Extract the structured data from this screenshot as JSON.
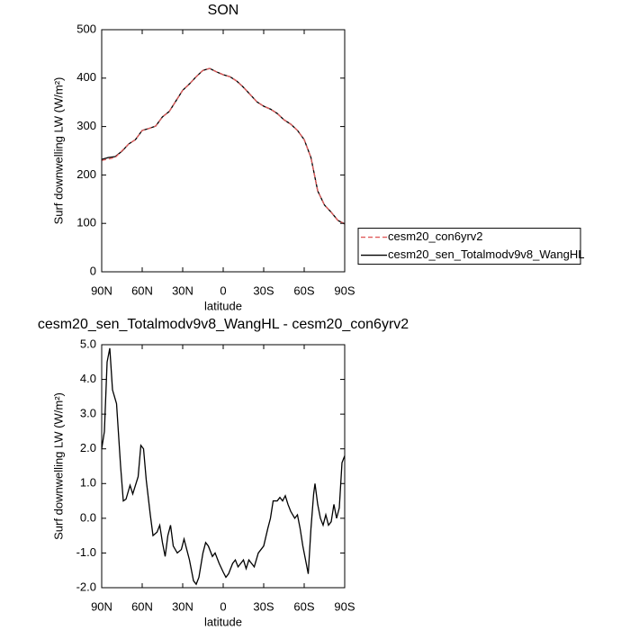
{
  "chart_data": [
    {
      "type": "line",
      "title": "SON",
      "xlabel": "latitude",
      "ylabel": "Surf downwelling LW (W/m²)",
      "x": [
        90,
        85,
        80,
        75,
        70,
        65,
        60,
        55,
        50,
        45,
        40,
        35,
        30,
        25,
        20,
        15,
        10,
        5,
        0,
        -5,
        -10,
        -15,
        -20,
        -25,
        -30,
        -35,
        -40,
        -45,
        -50,
        -55,
        -60,
        -65,
        -70,
        -75,
        -80,
        -85,
        -90
      ],
      "series": [
        {
          "name": "cesm20_con6yrv2",
          "color": "#e05a5a",
          "dash": true,
          "values": [
            230,
            233,
            236,
            250,
            264,
            273,
            292,
            296,
            301,
            320,
            331,
            353,
            375,
            388,
            403,
            416,
            420,
            413,
            407,
            403,
            394,
            381,
            366,
            351,
            342,
            336,
            327,
            314,
            305,
            292,
            273,
            236,
            167,
            138,
            123,
            106,
            99
          ]
        },
        {
          "name": "cesm20_sen_Totalmodv9v8_WangHL",
          "color": "#000000",
          "dash": false,
          "values": [
            232,
            236,
            238,
            249,
            264,
            273,
            292,
            296,
            301,
            320,
            331,
            353,
            375,
            388,
            403,
            416,
            420,
            413,
            407,
            403,
            394,
            381,
            366,
            351,
            342,
            336,
            327,
            314,
            305,
            292,
            273,
            236,
            167,
            138,
            123,
            106,
            99
          ]
        }
      ],
      "xlim": [
        90,
        -90
      ],
      "xticks": [
        {
          "value": 90,
          "label": "90N"
        },
        {
          "value": 60,
          "label": "60N"
        },
        {
          "value": 30,
          "label": "30N"
        },
        0,
        {
          "value": -30,
          "label": "30S"
        },
        {
          "value": -60,
          "label": "60S"
        },
        {
          "value": -90,
          "label": "90S"
        }
      ],
      "ylim": [
        0,
        500
      ],
      "yticks": [
        0,
        100,
        200,
        300,
        400,
        500
      ],
      "legend": "right"
    },
    {
      "type": "line",
      "title": "cesm20_sen_Totalmodv9v8_WangHL - cesm20_con6yrv2",
      "xlabel": "latitude",
      "ylabel": "Surf downwelling LW (W/m²)",
      "x": [
        90,
        88,
        86,
        84,
        82,
        79,
        76,
        74,
        72,
        69,
        67,
        63,
        61,
        59,
        57,
        54,
        52,
        49,
        47,
        45,
        43,
        41,
        39,
        37,
        34,
        31,
        29,
        27,
        25,
        22,
        20,
        18,
        15,
        13,
        11,
        8,
        6,
        3,
        0,
        -2,
        -4,
        -7,
        -9,
        -11,
        -13,
        -15,
        -17,
        -19,
        -21,
        -23,
        -26,
        -28,
        -30,
        -33,
        -35,
        -37,
        -40,
        -42,
        -44,
        -46,
        -48,
        -50,
        -53,
        -55,
        -57,
        -59,
        -61,
        -63,
        -65,
        -67,
        -68,
        -70,
        -72,
        -74,
        -76,
        -78,
        -80,
        -82,
        -84,
        -86,
        -88,
        -90
      ],
      "series": [
        {
          "color": "#000000",
          "dash": false,
          "values": [
            2.0,
            2.5,
            4.5,
            4.9,
            3.7,
            3.3,
            1.5,
            0.5,
            0.55,
            0.95,
            0.7,
            1.2,
            2.1,
            2.0,
            1.1,
            0.1,
            -0.5,
            -0.4,
            -0.2,
            -0.7,
            -1.1,
            -0.5,
            -0.2,
            -0.8,
            -1.0,
            -0.9,
            -0.6,
            -0.9,
            -1.2,
            -1.8,
            -1.9,
            -1.7,
            -1.0,
            -0.7,
            -0.8,
            -1.1,
            -1.0,
            -1.3,
            -1.55,
            -1.7,
            -1.6,
            -1.3,
            -1.2,
            -1.4,
            -1.3,
            -1.2,
            -1.45,
            -1.2,
            -1.3,
            -1.4,
            -1.0,
            -0.9,
            -0.8,
            -0.3,
            0.0,
            0.5,
            0.5,
            0.6,
            0.5,
            0.65,
            0.4,
            0.2,
            0.0,
            0.1,
            -0.3,
            -0.8,
            -1.2,
            -1.6,
            -0.3,
            0.7,
            1.0,
            0.4,
            0.0,
            -0.2,
            0.1,
            -0.2,
            -0.1,
            0.4,
            0.0,
            0.3,
            1.6,
            1.8
          ]
        }
      ],
      "xlim": [
        90,
        -90
      ],
      "xticks": [
        {
          "value": 90,
          "label": "90N"
        },
        {
          "value": 60,
          "label": "60N"
        },
        {
          "value": 30,
          "label": "30N"
        },
        0,
        {
          "value": -30,
          "label": "30S"
        },
        {
          "value": -60,
          "label": "60S"
        },
        {
          "value": -90,
          "label": "90S"
        }
      ],
      "ylim": [
        -2,
        5
      ],
      "yticks": [
        {
          "value": -2,
          "label": "-2.0"
        },
        {
          "value": -1,
          "label": "-1.0"
        },
        {
          "value": 0,
          "label": "0.0"
        },
        {
          "value": 1,
          "label": "1.0"
        },
        {
          "value": 2,
          "label": "2.0"
        },
        {
          "value": 3,
          "label": "3.0"
        },
        {
          "value": 4,
          "label": "4.0"
        },
        {
          "value": 5,
          "label": "5.0"
        }
      ]
    }
  ]
}
